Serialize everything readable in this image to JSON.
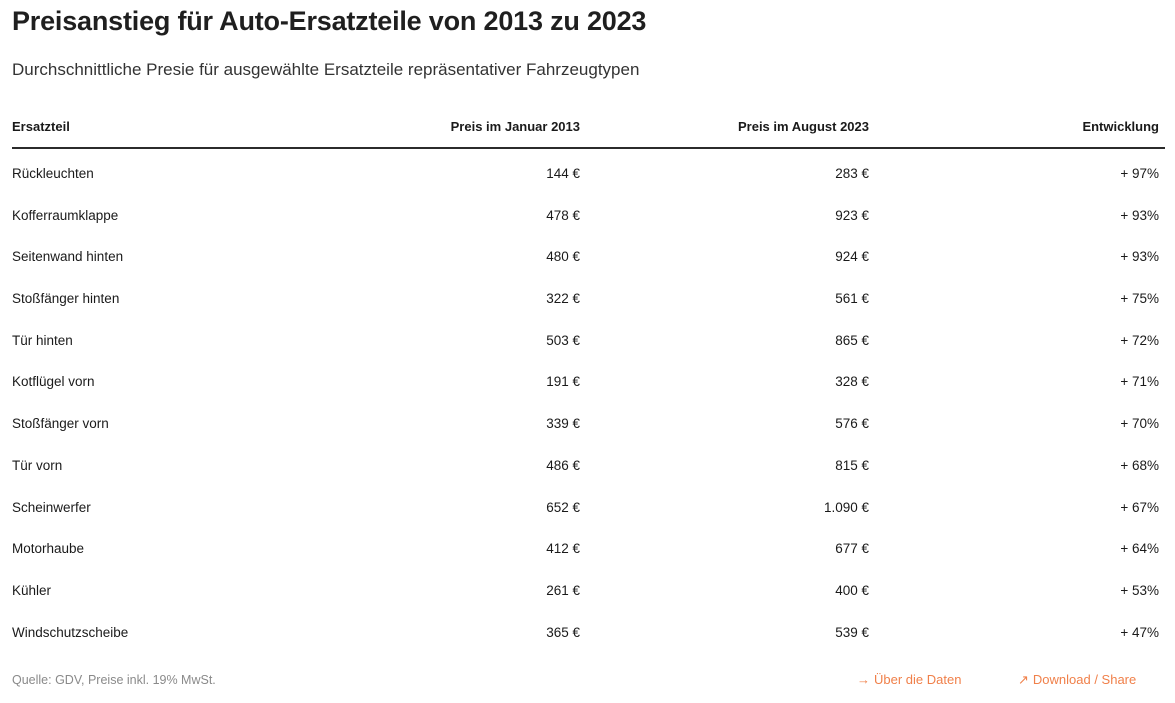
{
  "title": "Preisanstieg für Auto-Ersatzteile von 2013 zu 2023",
  "subtitle": "Durchschnittliche Presie für ausgewählte Ersatzteile repräsentativer Fahrzeugtypen",
  "chart_data": {
    "type": "table",
    "columns": [
      "Ersatzteil",
      "Preis im Januar 2013",
      "Preis im August 2023",
      "Entwicklung"
    ],
    "rows": [
      [
        "Rückleuchten",
        "144 €",
        "283 €",
        "+ 97%"
      ],
      [
        "Kofferraumklappe",
        "478 €",
        "923 €",
        "+ 93%"
      ],
      [
        "Seitenwand hinten",
        "480 €",
        "924 €",
        "+ 93%"
      ],
      [
        "Stoßfänger hinten",
        "322 €",
        "561 €",
        "+ 75%"
      ],
      [
        "Tür hinten",
        "503 €",
        "865 €",
        "+ 72%"
      ],
      [
        "Kotflügel vorn",
        "191 €",
        "328 €",
        "+ 71%"
      ],
      [
        "Stoßfänger vorn",
        "339 €",
        "576 €",
        "+ 70%"
      ],
      [
        "Tür vorn",
        "486 €",
        "815 €",
        "+ 68%"
      ],
      [
        "Scheinwerfer",
        "652 €",
        "1.090 €",
        "+ 67%"
      ],
      [
        "Motorhaube",
        "412 €",
        "677 €",
        "+ 64%"
      ],
      [
        "Kühler",
        "261 €",
        "400 €",
        "+ 53%"
      ],
      [
        "Windschutzscheibe",
        "365 €",
        "539 €",
        "+ 47%"
      ]
    ]
  },
  "footer": {
    "source": "Quelle: GDV, Preise inkl. 19% MwSt.",
    "about_label": "Über die Daten",
    "about_icon_glyph": "→",
    "about_icon": "arrow-right-icon",
    "download_label": "Download / Share",
    "download_icon_glyph": "↗",
    "download_icon": "arrow-up-right-icon",
    "link_color": "#f0804a"
  }
}
